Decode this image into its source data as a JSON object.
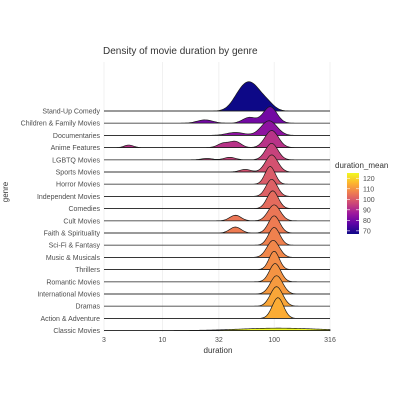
{
  "chart_data": {
    "type": "ridgeline",
    "title": "Density of movie duration by genre",
    "xlabel": "duration",
    "ylabel": "genre",
    "x_scale": "log10",
    "xlim": [
      3,
      316
    ],
    "x_ticks": [
      3,
      10,
      32,
      100,
      316
    ],
    "x_tick_labels": [
      "3",
      "10",
      "32",
      "100",
      "316"
    ],
    "legend": {
      "title": "duration_mean",
      "placement": "right",
      "range": [
        67,
        125
      ],
      "ticks": [
        70,
        80,
        90,
        100,
        110,
        120
      ],
      "colors": [
        "#0d0887",
        "#5c01a6",
        "#9c179e",
        "#cc4778",
        "#ed7953",
        "#fdb42f",
        "#f0f921"
      ]
    },
    "grid": true,
    "series": [
      {
        "name": "Stand-Up Comedy",
        "duration_mean": 67,
        "peak_scale": 2.4,
        "modes": [
          {
            "x": 62,
            "s": 0.09,
            "w": 1.0
          },
          {
            "x": 48,
            "s": 0.07,
            "w": 0.3
          },
          {
            "x": 88,
            "s": 0.06,
            "w": 0.2
          }
        ]
      },
      {
        "name": "Children & Family Movies",
        "duration_mean": 80,
        "peak_scale": 1.35,
        "modes": [
          {
            "x": 92,
            "s": 0.06,
            "w": 1.0
          },
          {
            "x": 60,
            "s": 0.06,
            "w": 0.35
          },
          {
            "x": 24,
            "s": 0.07,
            "w": 0.2
          }
        ]
      },
      {
        "name": "Documentaries",
        "duration_mean": 84,
        "peak_scale": 1.2,
        "modes": [
          {
            "x": 90,
            "s": 0.07,
            "w": 1.0
          },
          {
            "x": 45,
            "s": 0.08,
            "w": 0.2
          }
        ]
      },
      {
        "name": "Anime Features",
        "duration_mean": 92,
        "peak_scale": 1.4,
        "modes": [
          {
            "x": 95,
            "s": 0.06,
            "w": 1.0
          },
          {
            "x": 45,
            "s": 0.05,
            "w": 0.35
          },
          {
            "x": 35,
            "s": 0.05,
            "w": 0.25
          },
          {
            "x": 5,
            "s": 0.04,
            "w": 0.15
          }
        ]
      },
      {
        "name": "LGBTQ Movies",
        "duration_mean": 95,
        "peak_scale": 1.35,
        "modes": [
          {
            "x": 95,
            "s": 0.055,
            "w": 1.0
          },
          {
            "x": 40,
            "s": 0.05,
            "w": 0.15
          },
          {
            "x": 25,
            "s": 0.05,
            "w": 0.08
          }
        ]
      },
      {
        "name": "Sports Movies",
        "duration_mean": 98,
        "peak_scale": 1.4,
        "modes": [
          {
            "x": 95,
            "s": 0.055,
            "w": 1.0
          },
          {
            "x": 55,
            "s": 0.05,
            "w": 0.15
          }
        ]
      },
      {
        "name": "Horror Movies",
        "duration_mean": 100,
        "peak_scale": 1.45,
        "modes": [
          {
            "x": 92,
            "s": 0.045,
            "w": 1.0
          }
        ]
      },
      {
        "name": "Independent Movies",
        "duration_mean": 101,
        "peak_scale": 1.4,
        "modes": [
          {
            "x": 95,
            "s": 0.05,
            "w": 1.0
          }
        ]
      },
      {
        "name": "Comedies",
        "duration_mean": 103,
        "peak_scale": 1.45,
        "modes": [
          {
            "x": 97,
            "s": 0.05,
            "w": 1.0
          }
        ]
      },
      {
        "name": "Cult Movies",
        "duration_mean": 105,
        "peak_scale": 1.3,
        "modes": [
          {
            "x": 100,
            "s": 0.055,
            "w": 1.0
          },
          {
            "x": 45,
            "s": 0.05,
            "w": 0.35
          }
        ]
      },
      {
        "name": "Faith & Spirituality",
        "duration_mean": 106,
        "peak_scale": 1.4,
        "modes": [
          {
            "x": 100,
            "s": 0.05,
            "w": 1.0
          },
          {
            "x": 45,
            "s": 0.05,
            "w": 0.35
          }
        ]
      },
      {
        "name": "Sci-Fi & Fantasy",
        "duration_mean": 107,
        "peak_scale": 1.45,
        "modes": [
          {
            "x": 100,
            "s": 0.05,
            "w": 1.0
          }
        ]
      },
      {
        "name": "Music & Musicals",
        "duration_mean": 108,
        "peak_scale": 1.4,
        "modes": [
          {
            "x": 98,
            "s": 0.055,
            "w": 1.0
          }
        ]
      },
      {
        "name": "Thrillers",
        "duration_mean": 109,
        "peak_scale": 1.5,
        "modes": [
          {
            "x": 100,
            "s": 0.045,
            "w": 1.0
          }
        ]
      },
      {
        "name": "Romantic Movies",
        "duration_mean": 110,
        "peak_scale": 1.5,
        "modes": [
          {
            "x": 102,
            "s": 0.05,
            "w": 1.0
          }
        ]
      },
      {
        "name": "International Movies",
        "duration_mean": 111,
        "peak_scale": 1.5,
        "modes": [
          {
            "x": 105,
            "s": 0.055,
            "w": 1.0
          }
        ]
      },
      {
        "name": "Dramas",
        "duration_mean": 113,
        "peak_scale": 1.6,
        "modes": [
          {
            "x": 105,
            "s": 0.055,
            "w": 1.0
          }
        ]
      },
      {
        "name": "Action & Adventure",
        "duration_mean": 114,
        "peak_scale": 1.7,
        "modes": [
          {
            "x": 108,
            "s": 0.05,
            "w": 1.0
          }
        ]
      },
      {
        "name": "Classic Movies",
        "duration_mean": 125,
        "peak_scale": 0.2,
        "modes": [
          {
            "x": 110,
            "s": 0.35,
            "w": 1.0
          }
        ]
      }
    ]
  }
}
